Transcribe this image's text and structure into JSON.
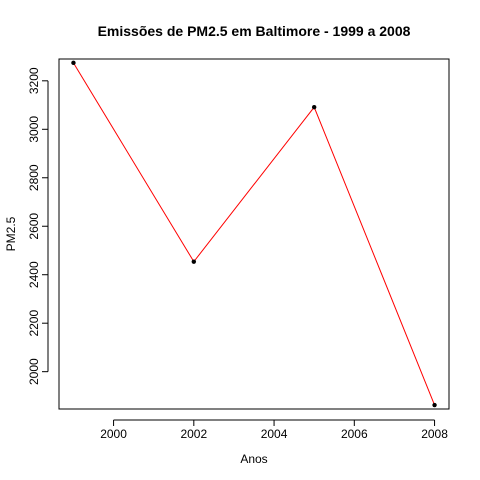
{
  "chart_data": {
    "type": "line",
    "title": "Emissões de PM2.5 em Baltimore - 1999 a 2008",
    "xlabel": "Anos",
    "ylabel": "PM2.5",
    "x": [
      1999,
      2002,
      2005,
      2008
    ],
    "series": [
      {
        "values": [
          3274.18,
          2453.92,
          3091.35,
          1862.28
        ],
        "color": "#ff0000",
        "marker_color": "#000000",
        "markers": true
      }
    ],
    "xlim": [
      1998.64,
      2008.36
    ],
    "ylim": [
      1846,
      3290
    ],
    "xticks": [
      2000,
      2002,
      2004,
      2006,
      2008
    ],
    "yticks": [
      2000,
      2200,
      2400,
      2600,
      2800,
      3000,
      3200
    ],
    "grid": false,
    "legend": "none"
  }
}
